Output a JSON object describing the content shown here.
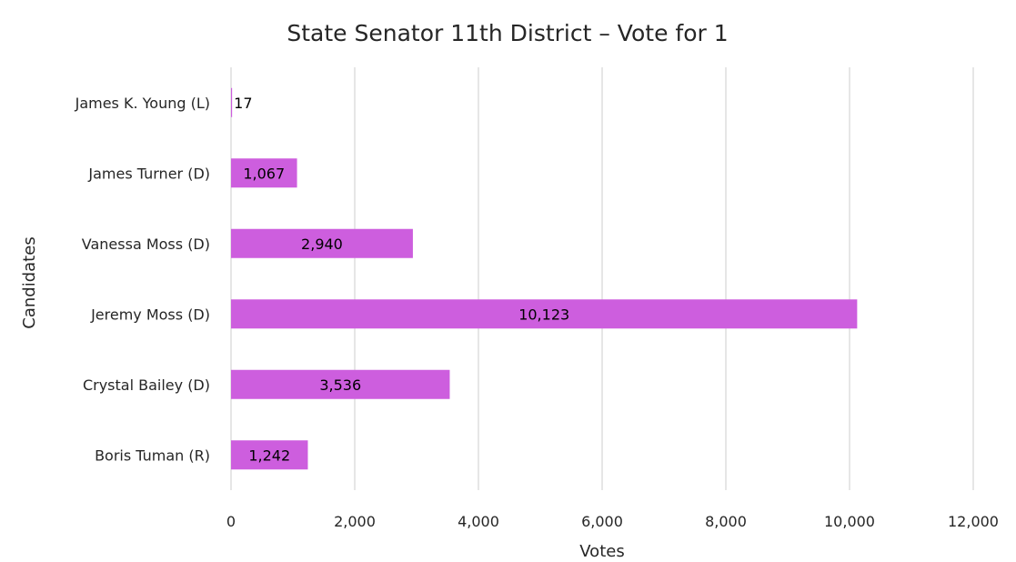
{
  "chart_data": {
    "type": "bar",
    "orientation": "horizontal",
    "title": "State Senator 11th District – Vote for 1",
    "xlabel": "Votes",
    "ylabel": "Candidates",
    "categories": [
      "Boris Tuman (R)",
      "Crystal Bailey (D)",
      "Jeremy Moss (D)",
      "Vanessa Moss (D)",
      "James Turner (D)",
      "James K. Young (L)"
    ],
    "values": [
      1242,
      3536,
      10123,
      2940,
      1067,
      17
    ],
    "data_labels": [
      "1,242",
      "3,536",
      "10,123",
      "2,940",
      "1,067",
      "17"
    ],
    "xlim": [
      0,
      12000
    ],
    "x_ticks": [
      0,
      2000,
      4000,
      6000,
      8000,
      10000,
      12000
    ],
    "x_tick_labels": [
      "0",
      "2,000",
      "4,000",
      "6,000",
      "8,000",
      "10,000",
      "12,000"
    ],
    "grid": "vertical",
    "legend": "none",
    "bar_color": "#cd5ede",
    "grid_color": "#d9d9d9"
  }
}
